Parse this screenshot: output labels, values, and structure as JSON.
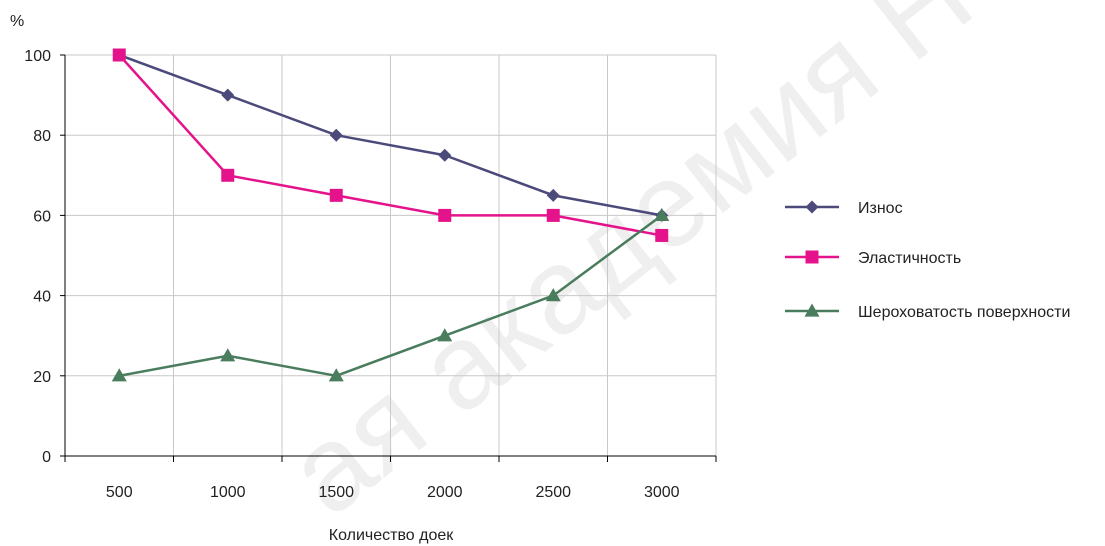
{
  "chart_data": {
    "type": "line",
    "x": [
      500,
      1000,
      1500,
      2000,
      2500,
      3000
    ],
    "categories": [
      "500",
      "1000",
      "1500",
      "2000",
      "2500",
      "3000"
    ],
    "series": [
      {
        "name": "Износ",
        "values": [
          100,
          90,
          80,
          75,
          65,
          60
        ],
        "color": "#4b4a7a",
        "marker": "diamond"
      },
      {
        "name": "Эластичность",
        "values": [
          100,
          70,
          65,
          60,
          60,
          55
        ],
        "color": "#e5138b",
        "marker": "square"
      },
      {
        "name": "Шероховатость поверхности",
        "values": [
          20,
          25,
          20,
          30,
          40,
          60
        ],
        "color": "#4a7c5e",
        "marker": "triangle"
      }
    ],
    "title": "",
    "xlabel": "Количество доек",
    "ylabel": "%",
    "ylim": [
      0,
      100
    ],
    "yticks": [
      "0",
      "20",
      "40",
      "60",
      "80",
      "100"
    ],
    "grid": true,
    "legend_position": "right",
    "watermark_text": "ая академия Н"
  }
}
